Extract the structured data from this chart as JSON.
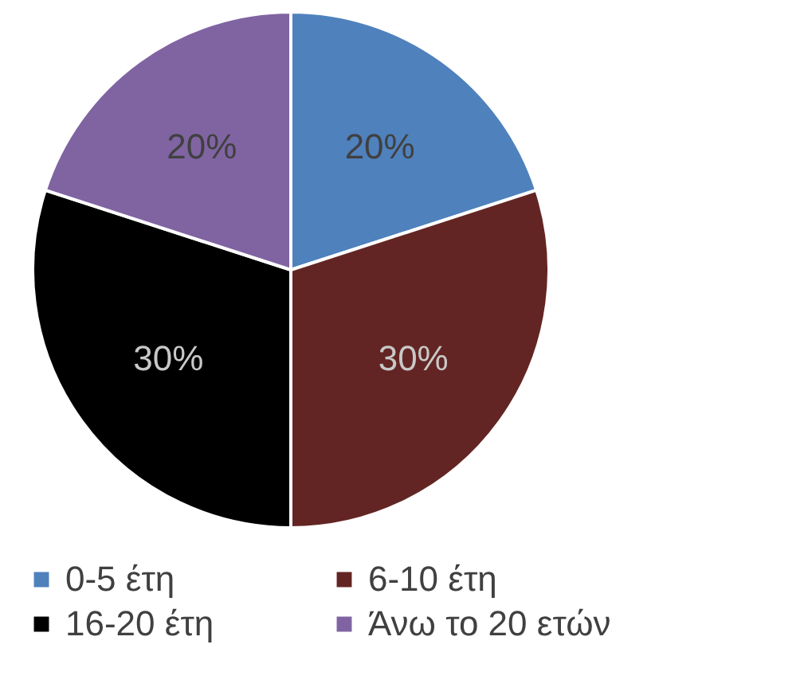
{
  "chart_data": {
    "type": "pie",
    "categories": [
      "0-5 έτη",
      "6-10 έτη",
      "16-20 έτη",
      "Άνω το 20 ετών"
    ],
    "values": [
      20,
      30,
      30,
      20
    ],
    "colors": [
      "#4f81bd",
      "#632523",
      "#000000",
      "#8064a2"
    ],
    "value_labels": [
      "20%",
      "30%",
      "30%",
      "20%"
    ],
    "legend": "bottom"
  }
}
